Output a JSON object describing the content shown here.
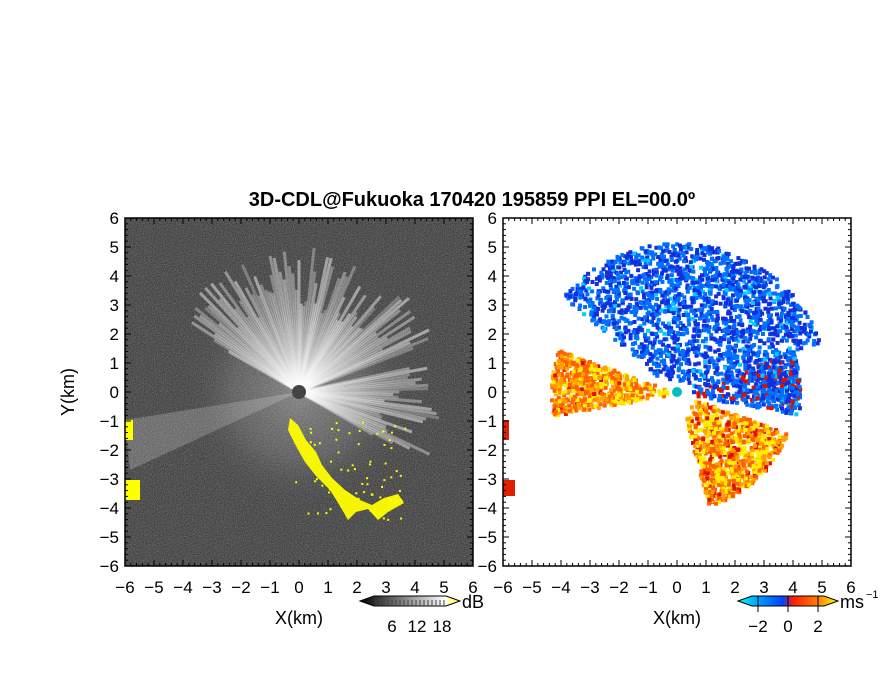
{
  "chart_data": {
    "type": "heatmap",
    "title": "3D-CDL@Fukuoka 170420 195859 PPI EL=00.0º",
    "panels": [
      {
        "name": "intensity",
        "xlabel": "X(km)",
        "ylabel": "Y(km)",
        "xlim": [
          -6,
          6
        ],
        "ylim": [
          -6,
          6
        ],
        "xticks": [
          "−6",
          "−5",
          "−4",
          "−3",
          "−2",
          "−1",
          "0",
          "1",
          "2",
          "3",
          "4",
          "5",
          "6"
        ],
        "yticks": [
          "−6",
          "−5",
          "−4",
          "−3",
          "−2",
          "−1",
          "0",
          "1",
          "2",
          "3",
          "4",
          "5",
          "6"
        ],
        "colorbar": {
          "ticks": [
            "6",
            "12",
            "18"
          ],
          "unit": "dB",
          "colors": [
            "#000000",
            "#ffffff",
            "#ffff00"
          ]
        }
      },
      {
        "name": "velocity",
        "xlabel": "X(km)",
        "ylabel": "",
        "xlim": [
          -6,
          6
        ],
        "ylim": [
          -6,
          6
        ],
        "xticks": [
          "−6",
          "−5",
          "−4",
          "−3",
          "−2",
          "−1",
          "0",
          "1",
          "2",
          "3",
          "4",
          "5",
          "6"
        ],
        "yticks": [
          "−6",
          "−5",
          "−4",
          "−3",
          "−2",
          "−1",
          "0",
          "1",
          "2",
          "3",
          "4",
          "5",
          "6"
        ],
        "colorbar": {
          "ticks": [
            "−2",
            "0",
            "2"
          ],
          "unit": "ms",
          "unit_exp": "−1",
          "colors": [
            "#00ffff",
            "#0040ff",
            "#ff3000",
            "#ffff00"
          ]
        }
      }
    ]
  }
}
